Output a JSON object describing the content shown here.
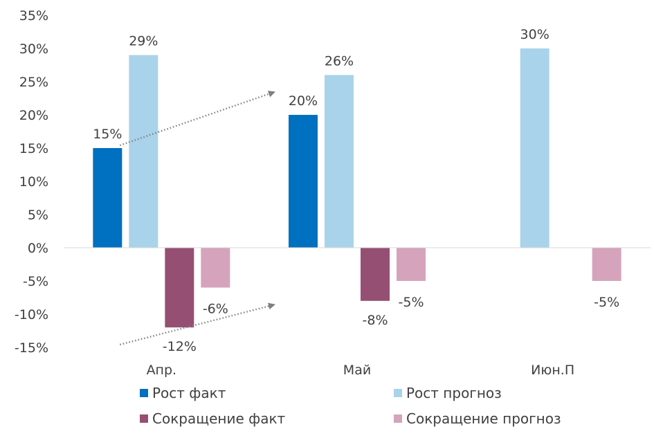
{
  "chart_data": {
    "type": "bar",
    "categories": [
      "Апр.",
      "Май",
      "Июн.П"
    ],
    "series": [
      {
        "name": "Рост факт",
        "values": [
          15,
          20,
          null
        ],
        "color": "#0070C0"
      },
      {
        "name": "Рост прогноз",
        "values": [
          29,
          26,
          30
        ],
        "color": "#A9D3EA"
      },
      {
        "name": "Сокращение факт",
        "values": [
          -12,
          -8,
          null
        ],
        "color": "#954F72"
      },
      {
        "name": "Сокращение прогноз",
        "values": [
          -6,
          -5,
          -5
        ],
        "color": "#D5A3BB"
      }
    ],
    "data_labels": {
      "Рост факт": [
        "15%",
        "20%",
        ""
      ],
      "Рост прогноз": [
        "29%",
        "26%",
        "30%"
      ],
      "Сокращение факт": [
        "-12%",
        "-8%",
        ""
      ],
      "Сокращение прогноз": [
        "-6%",
        "-5%",
        "-5%"
      ]
    },
    "ylim": [
      -15,
      35
    ],
    "yticks": [
      "35%",
      "30%",
      "25%",
      "20%",
      "15%",
      "10%",
      "5%",
      "0%",
      "-5%",
      "-10%",
      "-15%"
    ],
    "grid": false,
    "legend_position": "bottom",
    "annotations": [
      {
        "type": "dotted-arrow",
        "from": {
          "category": "Апр.",
          "value": 15
        },
        "to": {
          "category": "Май",
          "value": 23
        }
      },
      {
        "type": "dotted-arrow",
        "from": {
          "category": "Апр.",
          "value": -15
        },
        "to": {
          "category": "Май",
          "value": -9
        }
      }
    ]
  }
}
